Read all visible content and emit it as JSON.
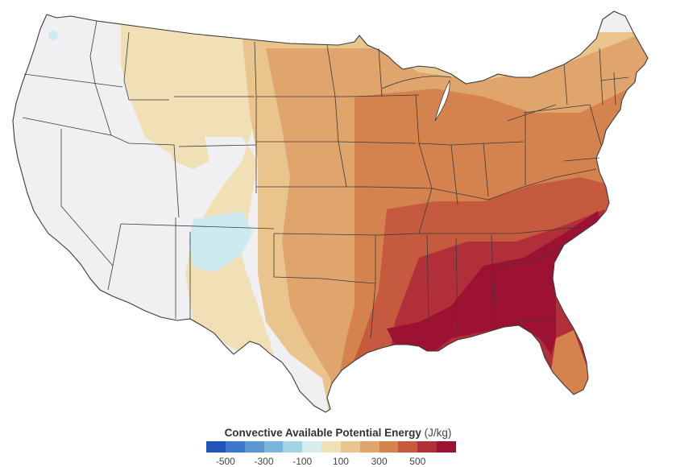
{
  "legend": {
    "title": "Convective Available Potential Energy",
    "unit": "(J/kg)",
    "swatches": [
      "#1f55b8",
      "#3a79cc",
      "#5b98d3",
      "#7ab6dc",
      "#a2d3e3",
      "#d7ecef",
      "#f1dfb6",
      "#e9c48c",
      "#dfa56d",
      "#d4834f",
      "#c55a3e",
      "#b02f38",
      "#9d1132"
    ],
    "ticks": [
      "-500",
      "-300",
      "-100",
      "100",
      "300",
      "500"
    ]
  },
  "map": {
    "subject": "contiguous United States",
    "palette": {
      "neutral": "#f0f0f2",
      "light_blue": "#cdeaf0",
      "pale_tan": "#f1dfb6",
      "tan": "#e9c48c",
      "light_orange": "#dfa56d",
      "orange": "#d4834f",
      "dark_orange": "#c55a3e",
      "red": "#b02f38",
      "crimson": "#9d1132",
      "border": "#3a3a3a"
    }
  }
}
